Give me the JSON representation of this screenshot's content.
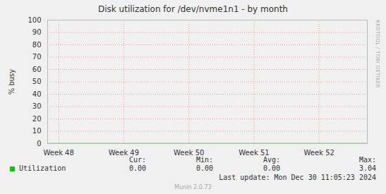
{
  "chart_data": {
    "type": "line",
    "title": "Disk utilization for /dev/nvme1n1 - by month",
    "y_label": "% busy",
    "side_text": "RRDTOOL / TOBI OETIKER",
    "x": [
      47.83,
      47.97,
      48.11,
      48.25,
      48.39,
      48.53,
      48.67,
      48.81,
      48.95,
      49.09,
      49.23,
      49.37,
      49.51,
      49.65,
      49.79,
      49.93,
      50.07,
      50.21,
      50.35,
      50.49,
      50.63,
      50.77,
      50.91,
      51.05,
      51.19,
      51.33,
      51.47,
      51.61,
      51.75,
      51.89,
      52.03,
      52.17,
      52.31,
      52.45,
      52.59,
      52.73
    ],
    "series": [
      {
        "name": "Utilization",
        "color": "#00cc00",
        "values": [
          0,
          0,
          0,
          0,
          0,
          0,
          0,
          0,
          0,
          0,
          0,
          0,
          0,
          0,
          0,
          0,
          0,
          0,
          0,
          0,
          0,
          0,
          0,
          0,
          0,
          0,
          0,
          0,
          0,
          0,
          0,
          0,
          0,
          0,
          0,
          0
        ]
      }
    ],
    "xlim": [
      47.83,
      52.74
    ],
    "xticks": [
      {
        "value": 48,
        "label": "Week 48"
      },
      {
        "value": 49,
        "label": "Week 49"
      },
      {
        "value": 50,
        "label": "Week 50"
      },
      {
        "value": 51,
        "label": "Week 51"
      },
      {
        "value": 52,
        "label": "Week 52"
      }
    ],
    "ylim": [
      0,
      100
    ],
    "yticks": [
      0,
      10,
      20,
      30,
      40,
      50,
      60,
      70,
      80,
      90,
      100
    ],
    "grid": true,
    "summary": {
      "labels": [
        "Cur:",
        "Min:",
        "Avg:",
        "Max:"
      ],
      "values": [
        0,
        0,
        0,
        3.04
      ],
      "value_labels": [
        "0.00",
        "0.00",
        "0.00",
        "3.04"
      ]
    },
    "last_update": "Last update: Mon Dec 30 11:05:23 2024",
    "footer": "Munin 2.0.73"
  }
}
